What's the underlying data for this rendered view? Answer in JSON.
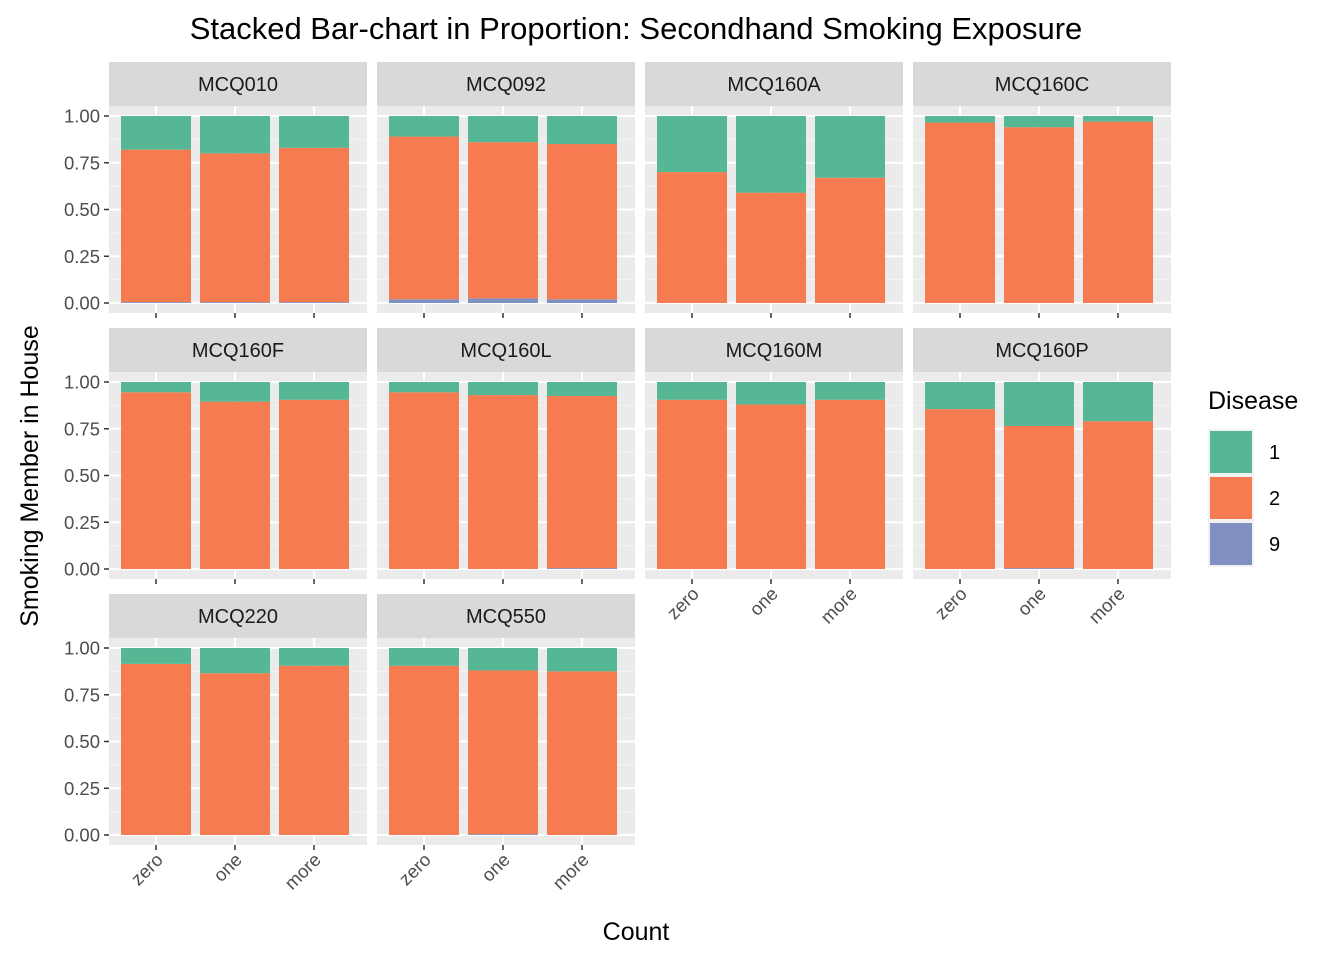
{
  "chart_data": {
    "type": "bar",
    "stacked": "proportion",
    "title": "Stacked Bar-chart in Proportion: Secondhand Smoking Exposure",
    "xlabel": "Count",
    "ylabel": "Smoking Member in House",
    "ylim": [
      0,
      1
    ],
    "yticks": [
      "0.00",
      "0.25",
      "0.50",
      "0.75",
      "1.00"
    ],
    "ytick_values": [
      0,
      0.25,
      0.5,
      0.75,
      1
    ],
    "categories": [
      "zero",
      "one",
      "more"
    ],
    "grid": true,
    "legend": {
      "title": "Disease",
      "position": "right",
      "entries": [
        {
          "label": "1",
          "color": "#55b794"
        },
        {
          "label": "2",
          "color": "#f77b51"
        },
        {
          "label": "9",
          "color": "#7f90c1"
        }
      ]
    },
    "panels": [
      {
        "name": "MCQ010",
        "series": {
          "1": [
            0.18,
            0.2,
            0.17
          ],
          "2": [
            0.815,
            0.795,
            0.825
          ],
          "9": [
            0.005,
            0.005,
            0.005
          ]
        }
      },
      {
        "name": "MCQ092",
        "series": {
          "1": [
            0.11,
            0.14,
            0.15
          ],
          "2": [
            0.87,
            0.835,
            0.83
          ],
          "9": [
            0.02,
            0.025,
            0.02
          ]
        }
      },
      {
        "name": "MCQ160A",
        "series": {
          "1": [
            0.3,
            0.41,
            0.33
          ],
          "2": [
            0.7,
            0.59,
            0.67
          ],
          "9": [
            0.0,
            0.0,
            0.0
          ]
        }
      },
      {
        "name": "MCQ160C",
        "series": {
          "1": [
            0.035,
            0.06,
            0.03
          ],
          "2": [
            0.965,
            0.94,
            0.97
          ],
          "9": [
            0.0,
            0.0,
            0.0
          ]
        }
      },
      {
        "name": "MCQ160F",
        "series": {
          "1": [
            0.055,
            0.105,
            0.095
          ],
          "2": [
            0.945,
            0.895,
            0.905
          ],
          "9": [
            0.0,
            0.0,
            0.0
          ]
        }
      },
      {
        "name": "MCQ160L",
        "series": {
          "1": [
            0.055,
            0.07,
            0.075
          ],
          "2": [
            0.945,
            0.93,
            0.92
          ],
          "9": [
            0.0,
            0.0,
            0.005
          ]
        }
      },
      {
        "name": "MCQ160M",
        "series": {
          "1": [
            0.095,
            0.12,
            0.095
          ],
          "2": [
            0.905,
            0.88,
            0.905
          ],
          "9": [
            0.0,
            0.0,
            0.0
          ]
        }
      },
      {
        "name": "MCQ160P",
        "series": {
          "1": [
            0.145,
            0.235,
            0.21
          ],
          "2": [
            0.855,
            0.76,
            0.79
          ],
          "9": [
            0.0,
            0.005,
            0.0
          ]
        }
      },
      {
        "name": "MCQ220",
        "series": {
          "1": [
            0.085,
            0.135,
            0.095
          ],
          "2": [
            0.915,
            0.865,
            0.905
          ],
          "9": [
            0.0,
            0.0,
            0.0
          ]
        }
      },
      {
        "name": "MCQ550",
        "series": {
          "1": [
            0.095,
            0.12,
            0.125
          ],
          "2": [
            0.905,
            0.875,
            0.875
          ],
          "9": [
            0.0,
            0.005,
            0.0
          ]
        }
      }
    ]
  }
}
